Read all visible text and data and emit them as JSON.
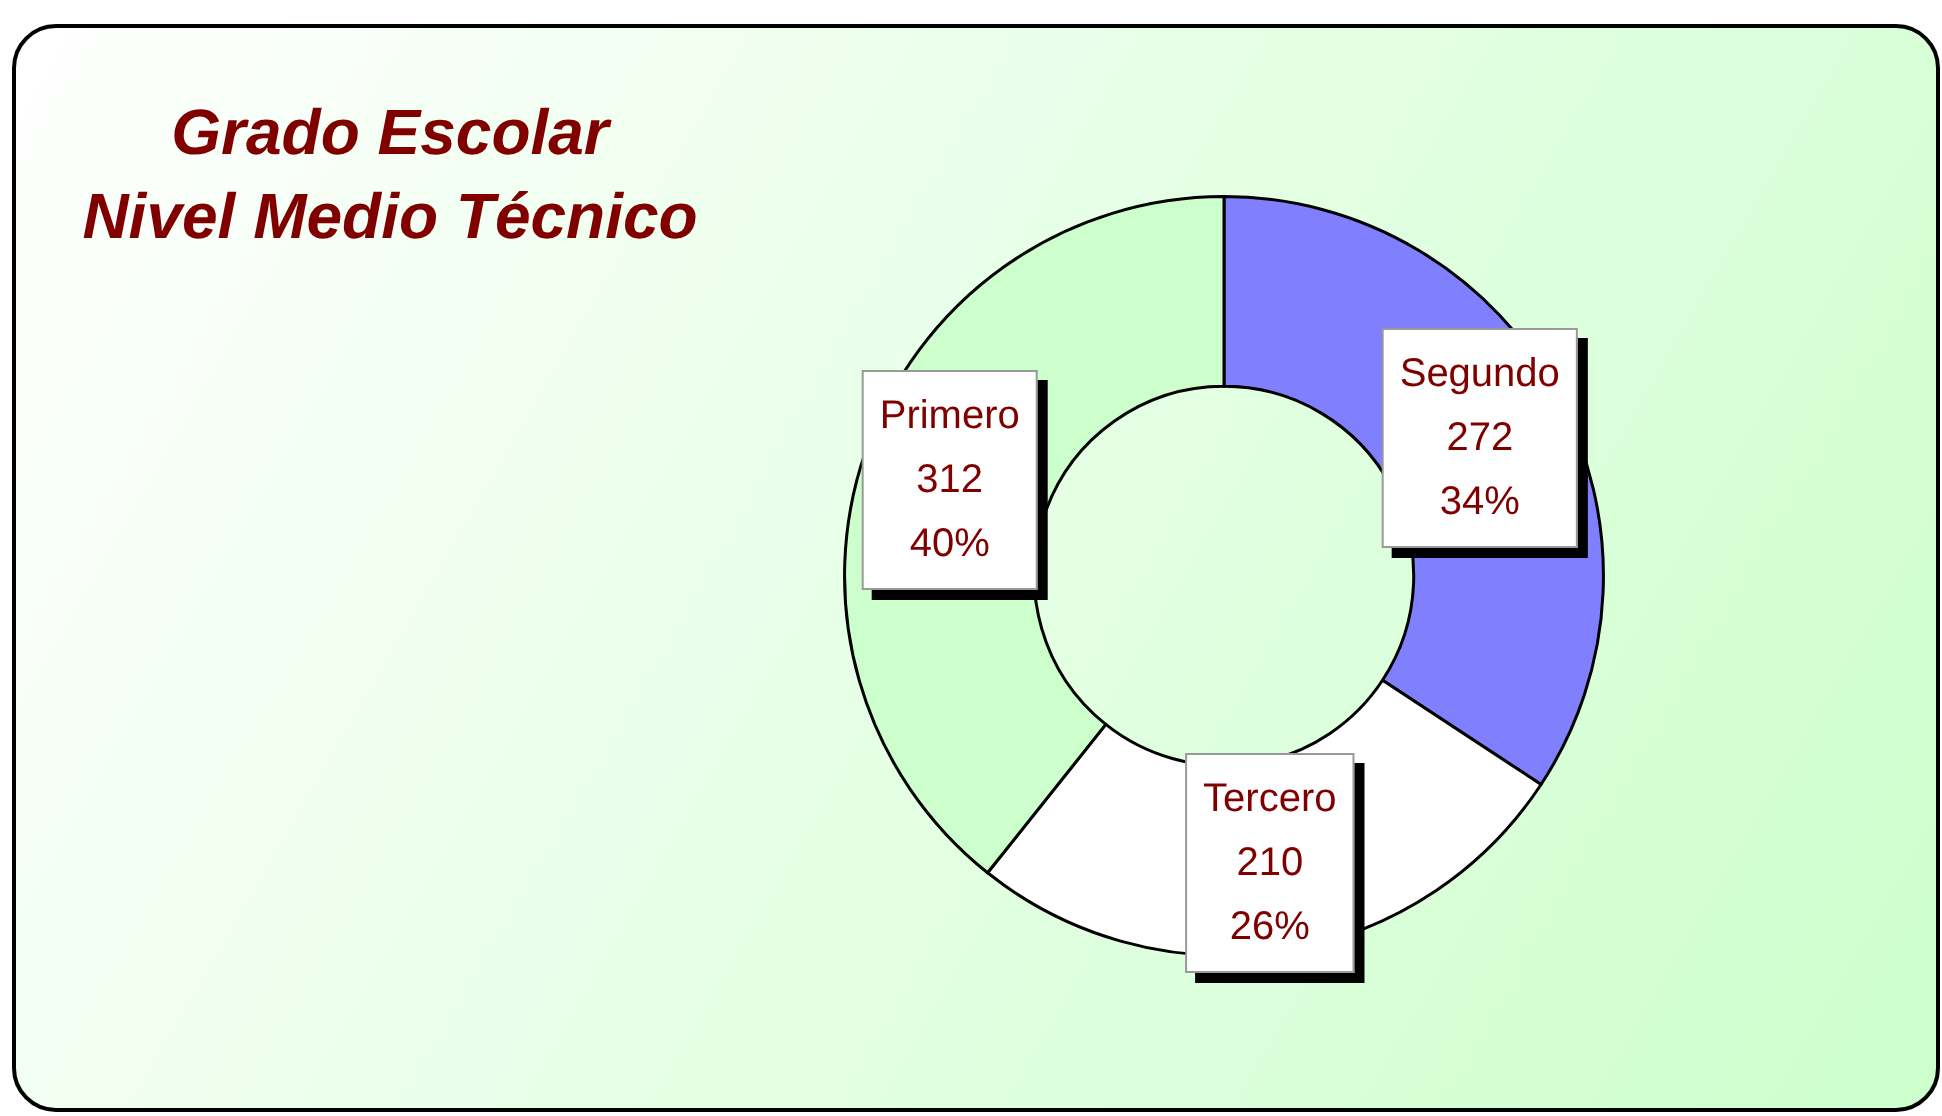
{
  "chart_data": {
    "type": "donut",
    "title": "Grado Escolar\nNivel Medio Técnico",
    "categories": [
      "Segundo",
      "Tercero",
      "Primero"
    ],
    "values": [
      272,
      210,
      312
    ],
    "colors": [
      "#8080ff",
      "#ffffff",
      "#ccffcc"
    ],
    "value_labels": [
      "272\n34%",
      "210\n26%",
      "312\n40%"
    ],
    "legend": false
  }
}
